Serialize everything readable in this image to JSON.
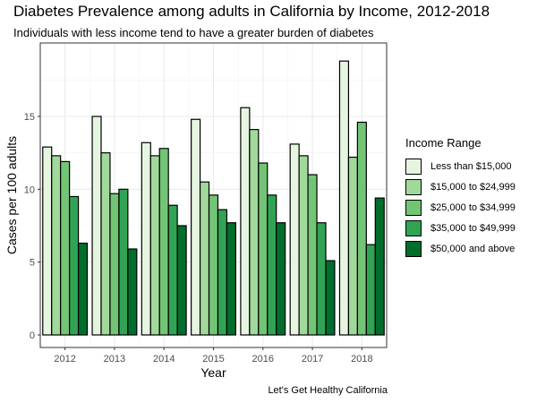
{
  "title": "Diabetes Prevalence among adults in California by Income, 2012-2018",
  "subtitle": "Individuals with less income tend to have a greater burden of diabetes",
  "caption": "Let's Get Healthy California",
  "legend_title": "Income Range",
  "chart_data": {
    "type": "bar",
    "title": "Diabetes Prevalence among adults in California by Income, 2012-2018",
    "subtitle": "Individuals with less income tend to have a greater burden of diabetes",
    "xlabel": "Year",
    "ylabel": "Cases per 100 adults",
    "ylim": [
      0,
      19.5
    ],
    "yticks": [
      0,
      5,
      10,
      15
    ],
    "grid": true,
    "legend_position": "right",
    "categories": [
      "2012",
      "2013",
      "2014",
      "2015",
      "2016",
      "2017",
      "2018"
    ],
    "series": [
      {
        "name": "Less than $15,000",
        "color": "#e5f5e0",
        "values": [
          12.9,
          15.0,
          13.2,
          14.8,
          15.6,
          13.1,
          18.8
        ]
      },
      {
        "name": "$15,000 to $24,999",
        "color": "#a1d99b",
        "values": [
          12.3,
          12.5,
          12.3,
          10.5,
          14.1,
          12.3,
          12.2
        ]
      },
      {
        "name": "$25,000 to $34,999",
        "color": "#74c476",
        "values": [
          11.9,
          9.7,
          12.8,
          9.6,
          11.8,
          11.0,
          14.6
        ]
      },
      {
        "name": "$35,000 to $49,999",
        "color": "#31a354",
        "values": [
          9.5,
          10.0,
          8.9,
          8.6,
          9.6,
          7.7,
          6.2
        ]
      },
      {
        "name": "$50,000 and above",
        "color": "#006d2c",
        "values": [
          6.3,
          5.9,
          7.5,
          7.7,
          7.7,
          5.1,
          9.4
        ]
      }
    ]
  }
}
